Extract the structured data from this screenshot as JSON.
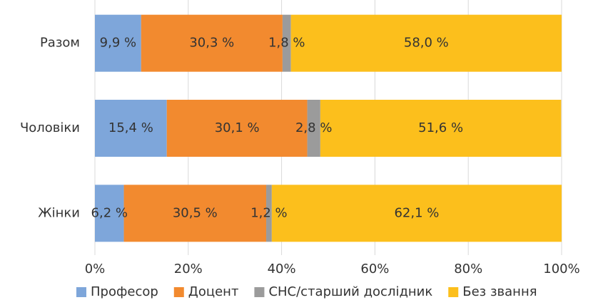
{
  "chart_data": {
    "type": "stacked-bar-horizontal",
    "categories": [
      "Разом",
      "Чоловіки",
      "Жінки"
    ],
    "series": [
      {
        "name": "Професор",
        "color": "#7ea6da",
        "values": [
          9.9,
          15.4,
          6.2
        ],
        "value_labels": [
          "9,9 %",
          "15,4 %",
          "6,2 %"
        ]
      },
      {
        "name": "Доцент",
        "color": "#f28a2f",
        "values": [
          30.3,
          30.1,
          30.5
        ],
        "value_labels": [
          "30,3 %",
          "30,1 %",
          "30,5 %"
        ]
      },
      {
        "name": "СНС/старший дослідник",
        "color": "#9b9b9b",
        "values": [
          1.8,
          2.8,
          1.2
        ],
        "value_labels": [
          "1,8 %",
          "2,8 %",
          "1,2 %"
        ]
      },
      {
        "name": "Без звання",
        "color": "#fcbf1c",
        "values": [
          58.0,
          51.6,
          62.1
        ],
        "value_labels": [
          "58,0 %",
          "51,6 %",
          "62,1 %"
        ]
      }
    ],
    "xlim": [
      0,
      100
    ],
    "xticks": [
      {
        "value": 0,
        "label": "0%"
      },
      {
        "value": 20,
        "label": "20%"
      },
      {
        "value": 40,
        "label": "40%"
      },
      {
        "value": 60,
        "label": "60%"
      },
      {
        "value": 80,
        "label": "80%"
      },
      {
        "value": 100,
        "label": "100%"
      }
    ],
    "grid": true,
    "legend": "bottom"
  }
}
